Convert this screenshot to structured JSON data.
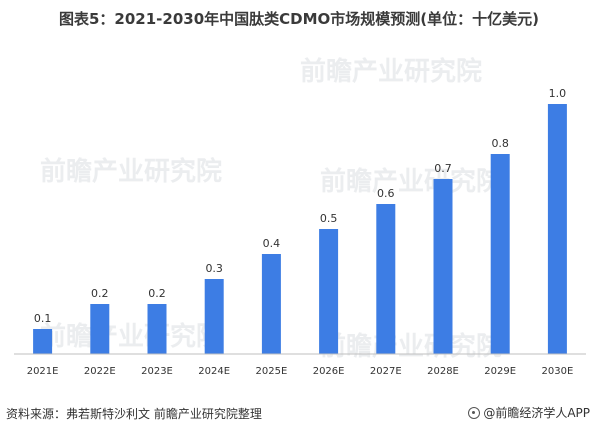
{
  "title": "图表5：2021-2030年中国肽类CDMO市场规模预测(单位：十亿美元)",
  "footer": {
    "source": "资料来源：弗若斯特沙利文 前瞻产业研究院整理",
    "brand": "@前瞻经济学人APP"
  },
  "watermark": {
    "text": "前瞻产业研究院"
  },
  "colors": {
    "bar": "#3d7de4",
    "axis": "#bfbfbf",
    "text": "#333333"
  },
  "chart_data": {
    "type": "bar",
    "title": "图表5：2021-2030年中国肽类CDMO市场规模预测(单位：十亿美元)",
    "categories": [
      "2021E",
      "2022E",
      "2023E",
      "2024E",
      "2025E",
      "2026E",
      "2027E",
      "2028E",
      "2029E",
      "2030E"
    ],
    "values": [
      0.1,
      0.2,
      0.2,
      0.3,
      0.4,
      0.5,
      0.6,
      0.7,
      0.8,
      1.0
    ],
    "value_labels": [
      "0.1",
      "0.2",
      "0.2",
      "0.3",
      "0.4",
      "0.5",
      "0.6",
      "0.7",
      "0.8",
      "1.0"
    ],
    "ylim": [
      0,
      1.0
    ],
    "grid": false,
    "legend": "none"
  }
}
